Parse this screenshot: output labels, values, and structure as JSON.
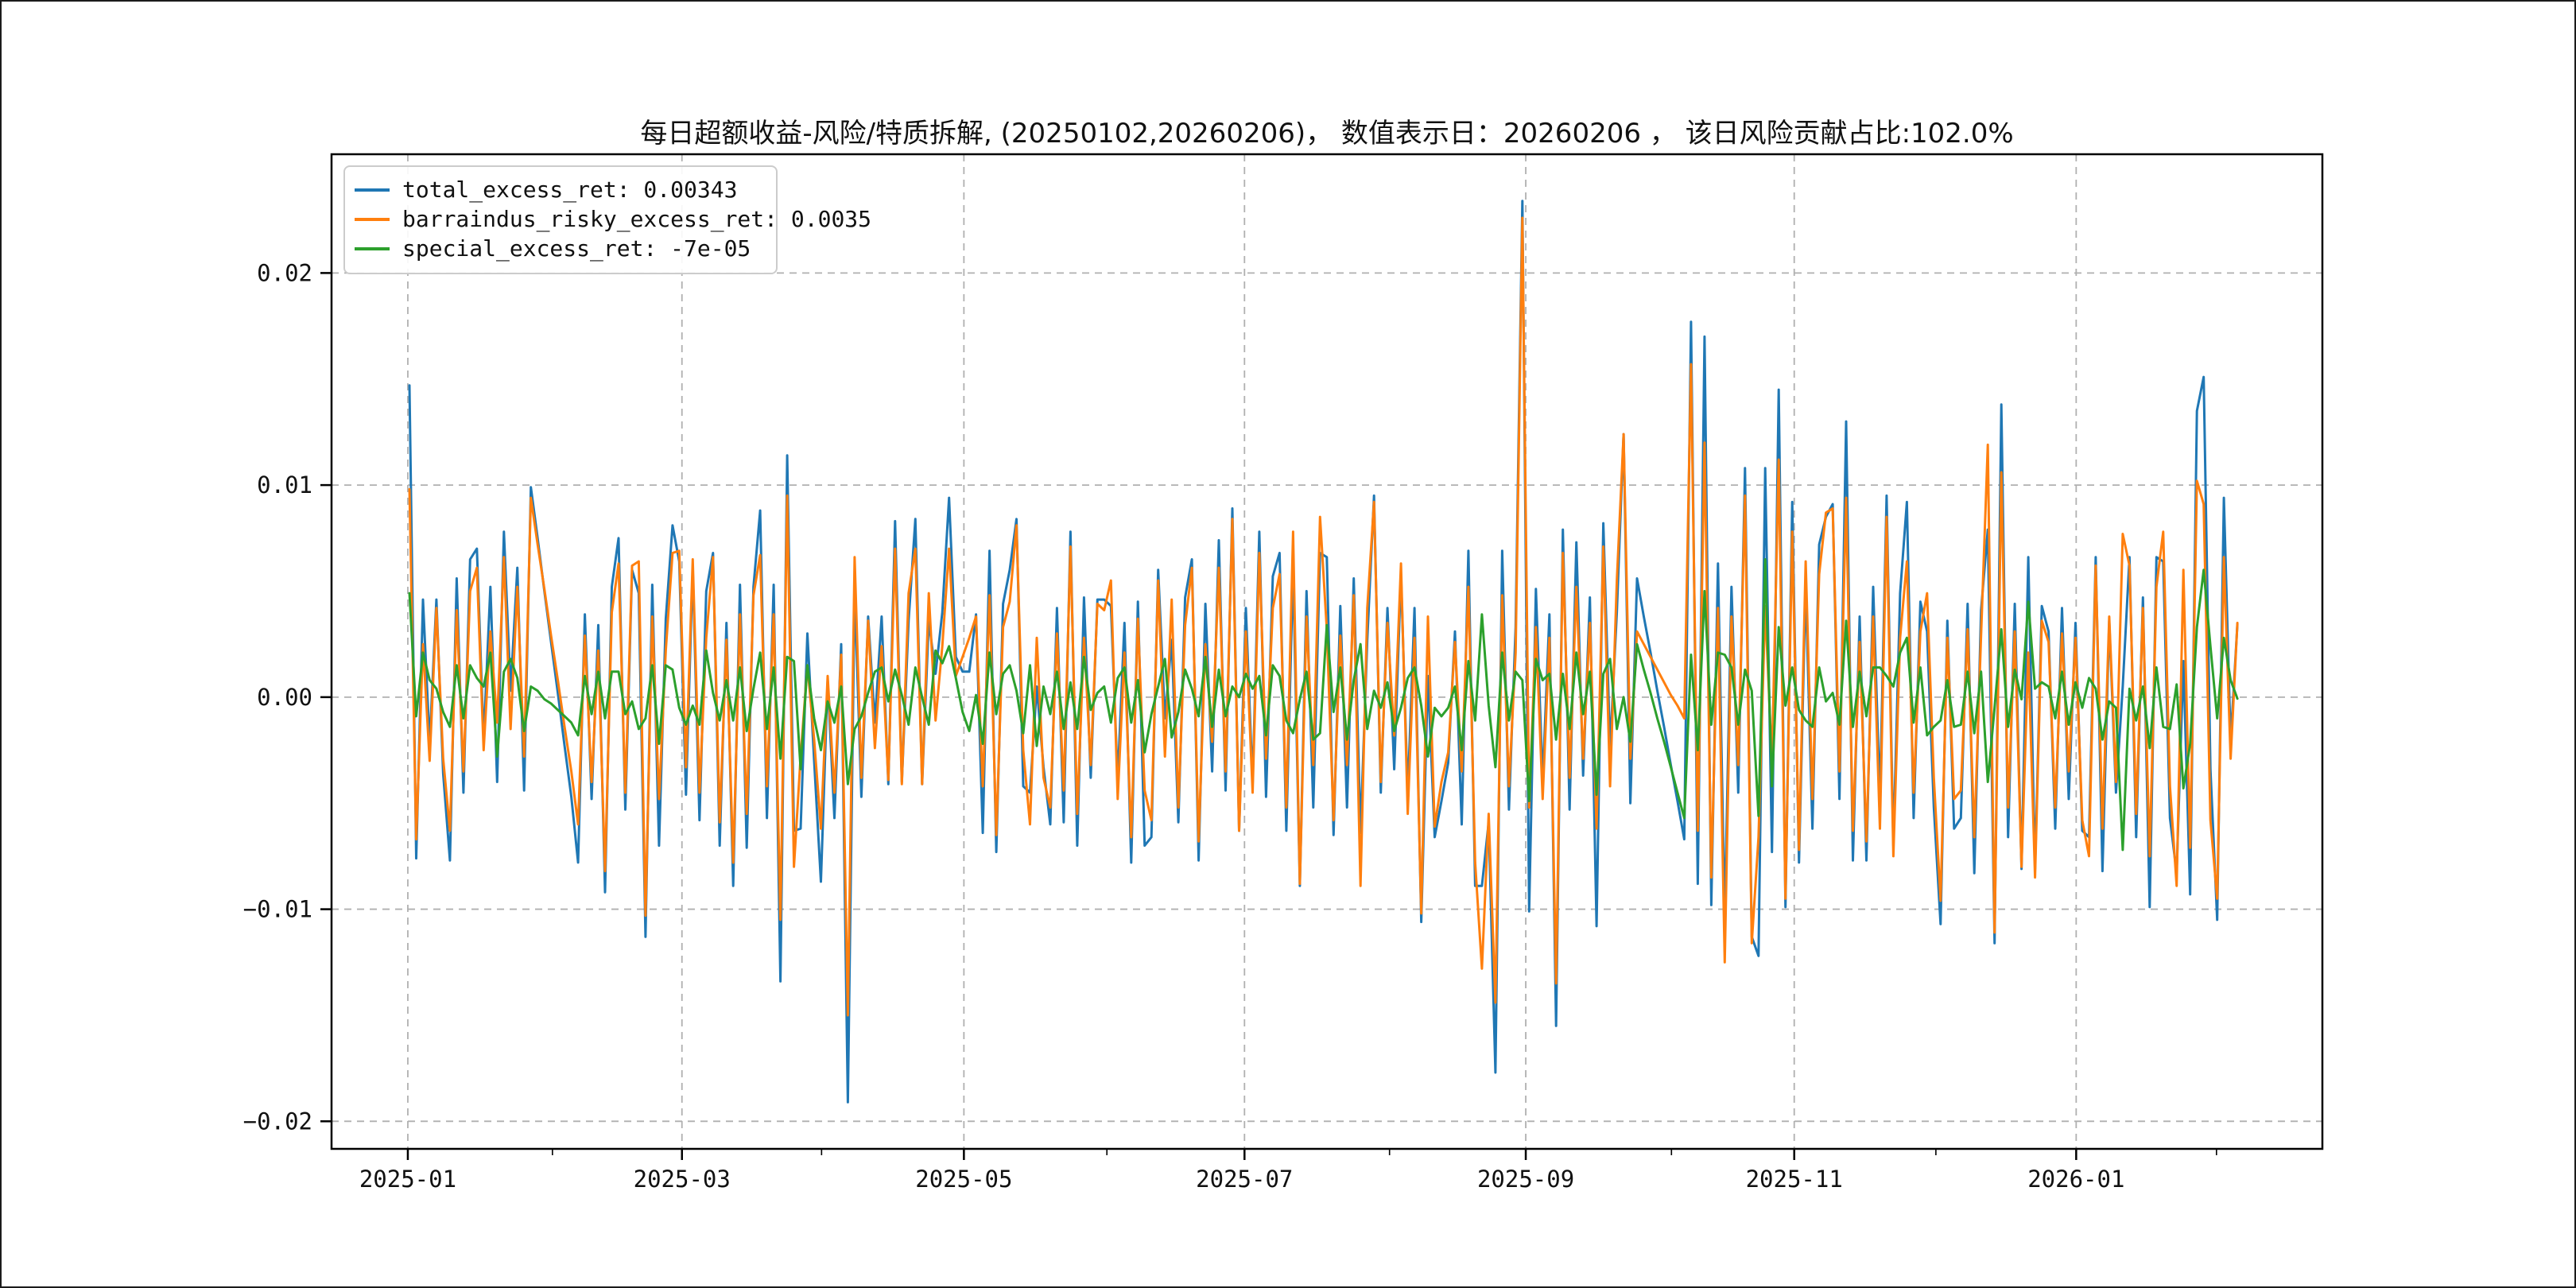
{
  "figure": {
    "background": "#ffffff",
    "frame_color": "#1b1b1b"
  },
  "title": "每日超额收益-风险/特质拆解, (20250102,20260206)，  数值表示日：20260206 ， 该日风险贡献占比:102.0%",
  "legend": {
    "position": "upper left",
    "items": [
      {
        "label": "total_excess_ret: 0.00343",
        "color": "#1f77b4"
      },
      {
        "label": "barraindus_risky_excess_ret: 0.0035",
        "color": "#ff7f0e"
      },
      {
        "label": "special_excess_ret: -7e-05",
        "color": "#2ca02c"
      }
    ]
  },
  "chart_data": {
    "type": "line",
    "title": "每日超额收益-风险/特质拆解, (20250102,20260206)，  数值表示日：20260206 ， 该日风险贡献占比:102.0%",
    "x_unit": "trading-day index from 2025-01-02 to 2026-02-06",
    "xlim": [
      -11.55,
      283.6
    ],
    "ylim": [
      -0.0213,
      0.0256
    ],
    "grid": {
      "show": true,
      "color": "#b0b0b0",
      "dash": "9 7"
    },
    "x_axis": {
      "major_ticks": [
        {
          "pos": -0.24,
          "label": "2025-01"
        },
        {
          "pos": 40.4,
          "label": "2025-03"
        },
        {
          "pos": 82.2,
          "label": "2025-05"
        },
        {
          "pos": 123.8,
          "label": "2025-07"
        },
        {
          "pos": 165.5,
          "label": "2025-09"
        },
        {
          "pos": 205.3,
          "label": "2025-11"
        },
        {
          "pos": 247.1,
          "label": "2026-01"
        }
      ],
      "minor_ticks": [
        21.2,
        61.1,
        103.4,
        145.3,
        187.1,
        226.3,
        267.9
      ]
    },
    "y_axis": {
      "major_ticks": [
        {
          "val": 0.02,
          "label": "0.02"
        },
        {
          "val": 0.01,
          "label": "0.01"
        },
        {
          "val": 0.0,
          "label": "0.00"
        },
        {
          "val": -0.01,
          "label": "−0.01"
        },
        {
          "val": -0.02,
          "label": "−0.02"
        }
      ]
    },
    "series": [
      {
        "name": "total_excess_ret",
        "color": "#1f77b4",
        "last_value": 0.00343,
        "values": [
          0.0147,
          -0.0076,
          0.0046,
          -0.0022,
          0.0046,
          -0.0036,
          -0.0077,
          0.0056,
          -0.0045,
          0.0065,
          0.007,
          -0.002,
          0.0052,
          -0.004,
          0.0078,
          0.0003,
          0.0061,
          -0.0044,
          0.0099,
          0.0075,
          0.005,
          0.0026,
          0.0002,
          -0.0023,
          -0.0047,
          -0.0078,
          0.0039,
          -0.0048,
          0.0034,
          -0.0092,
          0.0052,
          0.0075,
          -0.0053,
          0.006,
          0.0049,
          -0.0113,
          0.0053,
          -0.007,
          0.0037,
          0.0081,
          0.0064,
          -0.0046,
          0.0061,
          -0.0058,
          0.005,
          0.0068,
          -0.007,
          0.0035,
          -0.0089,
          0.0053,
          -0.0071,
          0.0052,
          0.0088,
          -0.0057,
          0.0053,
          -0.0134,
          0.0114,
          -0.0063,
          -0.0062,
          0.003,
          -0.003,
          -0.0087,
          0.0008,
          -0.0057,
          0.0025,
          -0.0191,
          0.0051,
          -0.0047,
          0.0038,
          -0.0012,
          0.0038,
          -0.0041,
          0.0083,
          -0.004,
          0.0036,
          0.0084,
          -0.0041,
          0.0036,
          0.0011,
          0.004,
          0.0094,
          0.0019,
          0.0012,
          0.0012,
          0.0039,
          -0.0064,
          0.0069,
          -0.0073,
          0.0044,
          0.006,
          0.0084,
          -0.0042,
          -0.0045,
          0.0005,
          -0.0033,
          -0.006,
          0.0042,
          -0.0059,
          0.0078,
          -0.007,
          0.0047,
          -0.0038,
          0.0046,
          0.0046,
          0.0043,
          -0.0039,
          0.0035,
          -0.0078,
          0.0045,
          -0.007,
          -0.0066,
          0.006,
          -0.001,
          0.0027,
          -0.0059,
          0.0047,
          0.0065,
          -0.0077,
          0.0044,
          -0.0035,
          0.0074,
          -0.0044,
          0.0089,
          -0.0063,
          0.0042,
          -0.0041,
          0.0078,
          -0.0047,
          0.0057,
          0.0068,
          -0.0063,
          0.0061,
          -0.0089,
          0.005,
          -0.0052,
          0.0068,
          0.0066,
          -0.0065,
          0.0043,
          -0.0052,
          0.0056,
          -0.0064,
          0.0027,
          0.0095,
          -0.0045,
          0.0042,
          -0.0034,
          0.0058,
          -0.0046,
          0.0042,
          -0.0106,
          0.001,
          -0.0066,
          -0.0049,
          -0.0031,
          0.0031,
          -0.006,
          0.0069,
          -0.0089,
          -0.0089,
          -0.0059,
          -0.0177,
          0.0069,
          -0.0053,
          0.0033,
          0.0234,
          -0.0101,
          0.0051,
          -0.004,
          0.0039,
          -0.0155,
          0.0079,
          -0.0053,
          0.0073,
          -0.0037,
          0.0047,
          -0.0108,
          0.0082,
          -0.0024,
          0.004,
          0.0124,
          -0.005,
          0.0056,
          0.0038,
          0.0021,
          0.0003,
          -0.0014,
          -0.0032,
          -0.0049,
          -0.0067,
          0.0177,
          -0.0088,
          0.017,
          -0.0098,
          0.0063,
          -0.0105,
          0.0052,
          -0.0045,
          0.0108,
          -0.0113,
          -0.0122,
          0.0108,
          -0.0073,
          0.0145,
          -0.0099,
          0.0092,
          -0.0078,
          0.0053,
          -0.0062,
          0.0072,
          0.0085,
          0.0091,
          -0.0048,
          0.013,
          -0.0077,
          0.0038,
          -0.0077,
          0.0052,
          -0.0048,
          0.0095,
          -0.007,
          0.0049,
          0.0092,
          -0.0057,
          0.0045,
          0.0031,
          -0.0052,
          -0.0107,
          0.0036,
          -0.0062,
          -0.0057,
          0.0044,
          -0.0083,
          0.0041,
          0.0079,
          -0.0116,
          0.0138,
          -0.0066,
          0.0044,
          -0.0081,
          0.0066,
          -0.0081,
          0.0043,
          0.0031,
          -0.0062,
          0.0042,
          -0.0048,
          0.0035,
          -0.0063,
          -0.0066,
          0.0066,
          -0.0082,
          0.0036,
          -0.0045,
          0.0005,
          0.0066,
          -0.0066,
          0.0047,
          -0.0099,
          0.0066,
          0.0064,
          -0.0057,
          -0.0083,
          0.0017,
          -0.0093,
          0.0135,
          0.0151,
          -0.0034,
          -0.0105,
          0.0094,
          -0.0021,
          0.00343
        ]
      },
      {
        "name": "barraindus_risky_excess_ret",
        "color": "#ff7f0e",
        "last_value": 0.0035,
        "values": [
          0.0098,
          -0.0067,
          0.0025,
          -0.003,
          0.0042,
          -0.0029,
          -0.0063,
          0.0041,
          -0.0035,
          0.005,
          0.0061,
          -0.0025,
          0.0031,
          -0.0012,
          0.0066,
          -0.0015,
          0.0052,
          -0.0028,
          0.0094,
          0.0072,
          0.0051,
          0.0029,
          0.0008,
          -0.0014,
          -0.0035,
          -0.006,
          0.0029,
          -0.004,
          0.0022,
          -0.0082,
          0.004,
          0.0063,
          -0.0045,
          0.0062,
          0.0064,
          -0.0103,
          0.0038,
          -0.0048,
          0.0022,
          0.0068,
          0.0069,
          -0.0033,
          0.0065,
          -0.0045,
          0.0028,
          0.0066,
          -0.0059,
          0.0027,
          -0.0078,
          0.0039,
          -0.0055,
          0.0048,
          0.0067,
          -0.0042,
          0.0039,
          -0.0105,
          0.0095,
          -0.008,
          -0.0028,
          0.0015,
          -0.002,
          -0.0062,
          0.001,
          -0.0045,
          0.002,
          -0.015,
          0.0066,
          -0.0038,
          0.0036,
          -0.0024,
          0.0024,
          -0.0039,
          0.007,
          -0.0041,
          0.0049,
          0.007,
          -0.0041,
          0.0049,
          -0.0011,
          0.0024,
          0.007,
          0.001,
          0.0019,
          0.0028,
          0.0038,
          -0.0042,
          0.0048,
          -0.0065,
          0.0033,
          0.0045,
          0.0081,
          -0.0025,
          -0.006,
          0.0028,
          -0.0038,
          -0.0052,
          0.003,
          -0.0044,
          0.0071,
          -0.0055,
          0.0028,
          -0.0032,
          0.0044,
          0.0041,
          0.0055,
          -0.0048,
          0.0021,
          -0.0066,
          0.0037,
          -0.0044,
          -0.0058,
          0.0055,
          -0.0028,
          0.0046,
          -0.0052,
          0.0034,
          0.0061,
          -0.0068,
          0.0025,
          -0.0021,
          0.0061,
          -0.0035,
          0.0084,
          -0.0063,
          0.0031,
          -0.0045,
          0.0068,
          -0.0029,
          0.0042,
          0.0058,
          -0.0052,
          0.0078,
          -0.0088,
          0.0038,
          -0.0032,
          0.0085,
          0.0032,
          -0.0058,
          0.0029,
          -0.0032,
          0.0048,
          -0.0089,
          0.0042,
          0.0092,
          -0.004,
          0.0035,
          -0.0018,
          0.0063,
          -0.0055,
          0.0028,
          -0.0102,
          0.0038,
          -0.0061,
          -0.004,
          -0.0026,
          0.0026,
          -0.0035,
          0.0052,
          -0.0078,
          -0.0128,
          -0.0055,
          -0.0144,
          0.0048,
          -0.0042,
          0.0021,
          0.0226,
          -0.0052,
          0.0033,
          -0.0048,
          0.0028,
          -0.0135,
          0.0068,
          -0.0038,
          0.0052,
          -0.0029,
          0.0035,
          -0.0062,
          0.0071,
          -0.0042,
          0.0055,
          0.0124,
          -0.0029,
          0.0031,
          0.0025,
          0.0019,
          0.0013,
          0.0007,
          0.0001,
          -0.0004,
          -0.001,
          0.0157,
          -0.0063,
          0.012,
          -0.0085,
          0.0042,
          -0.0125,
          0.0038,
          -0.0032,
          0.0095,
          -0.0116,
          -0.0066,
          0.0043,
          -0.0031,
          0.0112,
          -0.0095,
          0.0078,
          -0.0072,
          0.0064,
          -0.0048,
          0.0058,
          0.0087,
          0.0089,
          -0.0035,
          0.0094,
          -0.0063,
          0.0026,
          -0.0068,
          0.0038,
          -0.0062,
          0.0085,
          -0.0075,
          0.0028,
          0.0064,
          -0.0045,
          0.0031,
          0.0049,
          -0.0038,
          -0.0096,
          0.0028,
          -0.0048,
          -0.0044,
          0.0032,
          -0.0066,
          0.0029,
          0.0119,
          -0.0111,
          0.0106,
          -0.0052,
          0.0031,
          -0.008,
          0.0021,
          -0.0085,
          0.0036,
          0.0026,
          -0.0052,
          0.003,
          -0.0035,
          0.0028,
          -0.0058,
          -0.0075,
          0.0062,
          -0.0062,
          0.0038,
          -0.004,
          0.0077,
          0.0062,
          -0.0055,
          0.0042,
          -0.0075,
          0.0052,
          0.0078,
          -0.0042,
          -0.0089,
          0.006,
          -0.0071,
          0.0102,
          0.0091,
          -0.0058,
          -0.0095,
          0.0066,
          -0.0029,
          0.0035
        ]
      },
      {
        "name": "special_excess_ret",
        "color": "#2ca02c",
        "last_value": -7e-05,
        "values": [
          0.0049,
          -0.0009,
          0.0021,
          0.0008,
          0.0004,
          -0.0007,
          -0.0014,
          0.0015,
          -0.001,
          0.0015,
          0.0009,
          0.0005,
          0.0021,
          -0.0028,
          0.0012,
          0.0018,
          0.0009,
          -0.0016,
          0.0005,
          0.0003,
          -0.0001,
          -0.0003,
          -0.0006,
          -0.0009,
          -0.0012,
          -0.0018,
          0.001,
          -0.0008,
          0.0012,
          -0.001,
          0.0012,
          0.0012,
          -0.0008,
          -0.0002,
          -0.0015,
          -0.001,
          0.0015,
          -0.0022,
          0.0015,
          0.0013,
          -0.0005,
          -0.0013,
          -0.0004,
          -0.0013,
          0.0022,
          0.0002,
          -0.0011,
          0.0008,
          -0.0011,
          0.0014,
          -0.0016,
          0.0004,
          0.0021,
          -0.0015,
          0.0014,
          -0.0029,
          0.0019,
          0.0017,
          -0.0034,
          0.0015,
          -0.001,
          -0.0025,
          -0.0002,
          -0.0012,
          0.0005,
          -0.0041,
          -0.0015,
          -0.0009,
          0.0002,
          0.0012,
          0.0014,
          -0.0002,
          0.0013,
          0.0001,
          -0.0013,
          0.0014,
          0.0,
          -0.0013,
          0.0022,
          0.0016,
          0.0024,
          0.0009,
          -0.0007,
          -0.0016,
          0.0001,
          -0.0022,
          0.0021,
          -0.0008,
          0.0011,
          0.0015,
          0.0003,
          -0.0017,
          0.0015,
          -0.0023,
          0.0005,
          -0.0008,
          0.0012,
          -0.0015,
          0.0007,
          -0.0015,
          0.0019,
          -0.0006,
          0.0002,
          0.0005,
          -0.0012,
          0.0009,
          0.0014,
          -0.0012,
          0.0008,
          -0.0026,
          -0.0008,
          0.0005,
          0.0018,
          -0.0019,
          -0.0007,
          0.0013,
          0.0004,
          -0.0009,
          0.0019,
          -0.0014,
          0.0013,
          -0.0009,
          0.0005,
          0.0,
          0.0011,
          0.0004,
          0.001,
          -0.0018,
          0.0015,
          0.001,
          -0.0011,
          -0.0017,
          -0.0001,
          0.0012,
          -0.002,
          -0.0017,
          0.0034,
          -0.0007,
          0.0014,
          -0.002,
          0.0008,
          0.0025,
          -0.0015,
          0.0003,
          -0.0005,
          0.0007,
          -0.0016,
          -0.0005,
          0.0009,
          0.0014,
          -0.0004,
          -0.0028,
          -0.0005,
          -0.0009,
          -0.0005,
          0.0005,
          -0.0025,
          0.0017,
          -0.0011,
          0.0039,
          -0.0004,
          -0.0033,
          0.0021,
          -0.0011,
          0.0012,
          0.0008,
          -0.0049,
          0.0018,
          0.0008,
          0.0011,
          -0.002,
          0.0011,
          -0.0015,
          0.0021,
          -0.0008,
          0.0012,
          -0.0046,
          0.0011,
          0.0018,
          -0.0015,
          0.0,
          -0.0021,
          0.0025,
          0.0013,
          0.0002,
          -0.001,
          -0.0021,
          -0.0033,
          -0.0045,
          -0.0057,
          0.002,
          -0.0025,
          0.005,
          -0.0013,
          0.0021,
          0.002,
          0.0014,
          -0.0013,
          0.0013,
          0.0003,
          -0.0056,
          0.0065,
          -0.0042,
          0.0033,
          -0.0004,
          0.0014,
          -0.0006,
          -0.0011,
          -0.0014,
          0.0014,
          -0.0002,
          0.0002,
          -0.0013,
          0.0036,
          -0.0014,
          0.0012,
          -0.0009,
          0.0014,
          0.0014,
          0.001,
          0.0005,
          0.0021,
          0.0028,
          -0.0012,
          0.0014,
          -0.0018,
          -0.0014,
          -0.0011,
          0.0008,
          -0.0014,
          -0.0013,
          0.0012,
          -0.0017,
          0.0012,
          -0.004,
          -0.0005,
          0.0032,
          -0.0014,
          0.0013,
          -0.0001,
          0.0045,
          0.0004,
          0.0007,
          0.0005,
          -0.001,
          0.0012,
          -0.0013,
          0.0007,
          -0.0005,
          0.0009,
          0.0004,
          -0.002,
          -0.0002,
          -0.0005,
          -0.0072,
          0.0004,
          -0.0011,
          0.0005,
          -0.0024,
          0.0014,
          -0.0014,
          -0.0015,
          0.0006,
          -0.0043,
          -0.0022,
          0.0033,
          0.006,
          0.0024,
          -0.001,
          0.0028,
          0.0008,
          -7e-05
        ]
      }
    ],
    "legend_position": "upper left"
  }
}
